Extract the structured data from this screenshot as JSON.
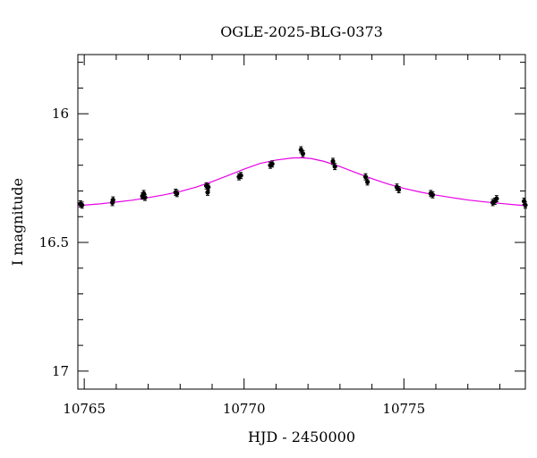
{
  "chart_data": {
    "type": "scatter",
    "title": "OGLE-2025-BLG-0373",
    "xlabel": "HJD - 2450000",
    "ylabel": "I magnitude",
    "xlim": [
      10764.8,
      10778.8
    ],
    "ylim": [
      17.07,
      15.77
    ],
    "y_inverted": true,
    "grid": false,
    "x_ticks": [
      10765,
      10770,
      10775
    ],
    "x_tick_labels": [
      "10765",
      "10770",
      "10775"
    ],
    "y_ticks": [
      16,
      16.5,
      17
    ],
    "y_tick_labels": [
      "16",
      "16.5",
      "17"
    ],
    "model_color": "#e600e6",
    "point_color": "#000000",
    "series": [
      {
        "kind": "points",
        "x": [
          10764.88,
          10764.93,
          10765.88,
          10765.9,
          10766.82,
          10766.86,
          10766.9,
          10767.86,
          10767.9,
          10768.82,
          10768.86,
          10768.88,
          10769.84,
          10769.9,
          10770.82,
          10770.88,
          10771.78,
          10771.84,
          10772.78,
          10772.84,
          10773.8,
          10773.86,
          10774.78,
          10774.84,
          10775.84,
          10775.9,
          10777.78,
          10777.84,
          10777.9,
          10778.76,
          10778.8
        ],
        "y": [
          16.35,
          16.355,
          16.345,
          16.335,
          16.32,
          16.31,
          16.325,
          16.305,
          16.31,
          16.28,
          16.305,
          16.285,
          16.245,
          16.24,
          16.2,
          16.195,
          16.14,
          16.155,
          16.185,
          16.205,
          16.245,
          16.265,
          16.285,
          16.295,
          16.31,
          16.315,
          16.345,
          16.34,
          16.33,
          16.34,
          16.355
        ],
        "yerr": 0.012
      },
      {
        "kind": "model",
        "x": [
          10764.8,
          10765.5,
          10766.0,
          10766.5,
          10767.0,
          10767.5,
          10768.0,
          10768.5,
          10769.0,
          10769.5,
          10770.0,
          10770.5,
          10771.0,
          10771.5,
          10771.8,
          10772.1,
          10772.5,
          10773.0,
          10773.5,
          10774.0,
          10774.5,
          10775.0,
          10775.5,
          10776.0,
          10776.5,
          10777.0,
          10777.5,
          10778.0,
          10778.5,
          10778.8
        ],
        "y": [
          16.357,
          16.35,
          16.343,
          16.336,
          16.326,
          16.315,
          16.302,
          16.285,
          16.264,
          16.24,
          16.215,
          16.193,
          16.18,
          16.172,
          16.171,
          16.174,
          16.185,
          16.205,
          16.229,
          16.252,
          16.273,
          16.29,
          16.304,
          16.316,
          16.326,
          16.335,
          16.342,
          16.348,
          16.354,
          16.357
        ]
      }
    ]
  }
}
